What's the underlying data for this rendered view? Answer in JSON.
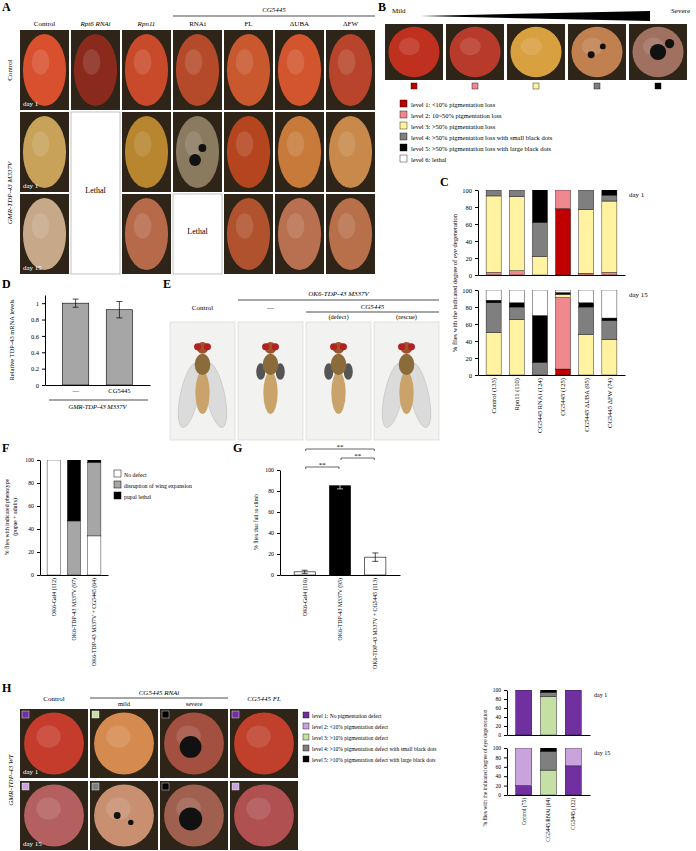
{
  "figure": {
    "panel_labels": [
      "A",
      "B",
      "C",
      "D",
      "E",
      "F",
      "G",
      "H"
    ],
    "A": {
      "column_group": "CG5445",
      "columns": [
        "Control",
        "Rpt6 RNAi",
        "Rpn11",
        "RNAi",
        "FL",
        "ΔUBA",
        "ΔFW"
      ],
      "rows": [
        "Control",
        "GMR-TDP-43 M337V"
      ],
      "day_labels": [
        "day 1",
        "day 1",
        "day 15"
      ],
      "lethal": [
        "Lethal",
        "Lethal"
      ]
    },
    "B": {
      "mild": "Mild",
      "severe": "Severe"
    },
    "E": {
      "control": "Control",
      "genotype": "OK6-TDP-43 M337V",
      "none": "—",
      "gene": "CG5445",
      "defect": "(defect)",
      "rescue": "(rescue)"
    },
    "H": {
      "genotype": "GMR-TDP-43 WT",
      "columns": [
        "Control",
        "CG5445 RNAi",
        "CG5445 FL"
      ],
      "subcolumns": [
        "mild",
        "severe"
      ],
      "day_labels": [
        "day 1",
        "day 15"
      ]
    }
  },
  "chart_data": [
    {
      "type": "bar",
      "stacked": true,
      "title": "day 1",
      "tick_labels": "y",
      "ylabel": "% flies with the indicated degree of eye degeneration",
      "categories": [
        null,
        null,
        null,
        null,
        null,
        null
      ],
      "ylim": [
        0,
        100
      ],
      "yticks": [
        0,
        20,
        40,
        60,
        80,
        100
      ],
      "series": [
        {
          "name": "level 1: <10% pigmentation loss",
          "color": "#c00000",
          "values": [
            0,
            0,
            0,
            78,
            0,
            0
          ]
        },
        {
          "name": "level 2: 10~50% pigmentation loss",
          "color": "#f08890",
          "values": [
            3,
            5,
            0,
            22,
            2,
            3
          ]
        },
        {
          "name": "level 3: >50% pigmentation loss",
          "color": "#fff2a0",
          "values": [
            90,
            87,
            22,
            0,
            75,
            84
          ]
        },
        {
          "name": "level 4: >50% pigmentation loss with small black dots",
          "color": "#7f7f7f",
          "values": [
            7,
            8,
            40,
            0,
            23,
            7
          ]
        },
        {
          "name": "level 5: >50% pigmentation loss with large black dots",
          "color": "#000000",
          "values": [
            0,
            0,
            38,
            0,
            0,
            6
          ]
        },
        {
          "name": "level 6: lethal",
          "color": "#ffffff",
          "values": [
            0,
            0,
            0,
            0,
            0,
            0
          ]
        }
      ]
    },
    {
      "type": "bar",
      "stacked": true,
      "title": "day 15",
      "categories": [
        "Control (133)",
        "Rpn11 (110)",
        "CG5445 RNAi (124)",
        "CG5445 (125)",
        "CG5445 ΔUBA (95)",
        "CG5445 ΔFW (74)"
      ],
      "ylim": [
        0,
        100
      ],
      "yticks": [
        0,
        20,
        40,
        60,
        80,
        100
      ],
      "series": [
        {
          "color": "#c00000",
          "values": [
            0,
            0,
            0,
            7,
            0,
            0
          ]
        },
        {
          "color": "#f08890",
          "values": [
            0,
            0,
            0,
            84,
            0,
            0
          ]
        },
        {
          "color": "#fff2a0",
          "values": [
            50,
            65,
            0,
            4,
            48,
            42
          ]
        },
        {
          "color": "#7f7f7f",
          "values": [
            35,
            15,
            15,
            0,
            32,
            22
          ]
        },
        {
          "color": "#000000",
          "values": [
            3,
            5,
            55,
            2,
            5,
            3
          ]
        },
        {
          "color": "#ffffff",
          "values": [
            12,
            15,
            30,
            3,
            15,
            33
          ]
        }
      ]
    },
    {
      "type": "bar",
      "ylabel": "Relative TDP-43 mRNA levels",
      "xlabel": "GMR-TDP-43 M337V",
      "categories": [
        "—",
        "CG5445"
      ],
      "values": [
        1,
        0.92
      ],
      "errors": [
        0.05,
        0.1
      ],
      "color": "#a6a6a6",
      "ylim": [
        0,
        1.1
      ],
      "yticks": [
        0,
        0.2,
        0.4,
        0.6,
        0.8,
        1
      ]
    },
    {
      "type": "bar",
      "stacked": true,
      "legend": "right",
      "ylabel": [
        "% flies with indicated phenotype",
        "(pupae + adults)"
      ],
      "categories": [
        "OK6-Gal4 (112)",
        "OK6-TDP-43 M337V (97)",
        "OK6-TDP-43 M337V + CG5445 (64)"
      ],
      "ylim": [
        0,
        100
      ],
      "yticks": [
        0,
        20,
        40,
        60,
        80,
        100
      ],
      "series": [
        {
          "name": "No defect",
          "color": "#ffffff",
          "values": [
            100,
            0,
            34
          ]
        },
        {
          "name": "disruption of wing expansion",
          "color": "#a6a6a6",
          "values": [
            0,
            47,
            64
          ]
        },
        {
          "name": "pupal lethal",
          "color": "#000000",
          "values": [
            0,
            53,
            2
          ]
        }
      ]
    },
    {
      "type": "bar",
      "ylabel": "% flies that fail to climb",
      "categories": [
        "OK6-Gal4 (110)",
        "OK6-TDP-43 M337V (95)",
        "OK6-TDP-43 M337V + CG5445 (113)"
      ],
      "values": [
        3,
        85,
        17
      ],
      "errors": [
        1.5,
        3,
        4
      ],
      "colors": [
        "#ffffff",
        "#000000",
        "#ffffff"
      ],
      "ylim": [
        0,
        100
      ],
      "yticks": [
        0,
        20,
        40,
        60,
        80,
        100
      ],
      "significance": [
        {
          "from": 0,
          "to": 1,
          "label": "**"
        },
        {
          "from": 1,
          "to": 2,
          "label": "**"
        },
        {
          "from": 0,
          "to": 2,
          "label": "**"
        }
      ]
    },
    {
      "type": "bar",
      "stacked": true,
      "title": "day 1",
      "tick_labels": "y",
      "ylabel": "% flies with the indicated degree of eye degeneration",
      "categories": [
        null,
        null,
        null
      ],
      "ylim": [
        0,
        100
      ],
      "yticks": [
        0,
        20,
        40,
        60,
        80,
        100
      ],
      "series": [
        {
          "name": "level 1: No pigmentation defect",
          "color": "#7030a0",
          "values": [
            100,
            0,
            100
          ]
        },
        {
          "name": "level 2: <10% pigmentation defect",
          "color": "#c9a3dc",
          "values": [
            0,
            0,
            0
          ]
        },
        {
          "name": "level 3: >10% pigmentation defect",
          "color": "#c5e0a5",
          "values": [
            0,
            85,
            0
          ]
        },
        {
          "name": "level 4: >10% pigmentation defect with small black dots",
          "color": "#7f7f7f",
          "values": [
            0,
            10,
            0
          ]
        },
        {
          "name": "level 5: >10% pigmentation defect with large black dots",
          "color": "#000000",
          "values": [
            0,
            5,
            0
          ]
        }
      ]
    },
    {
      "type": "bar",
      "stacked": true,
      "title": "day 15",
      "categories": [
        "Control (75)",
        "CG5445 RNAi (64)",
        "CG5445 (122)"
      ],
      "ylim": [
        0,
        100
      ],
      "yticks": [
        0,
        20,
        40,
        60,
        80,
        100
      ],
      "series": [
        {
          "color": "#7030a0",
          "values": [
            20,
            0,
            62
          ]
        },
        {
          "color": "#c9a3dc",
          "values": [
            80,
            0,
            38
          ]
        },
        {
          "color": "#c5e0a5",
          "values": [
            0,
            53,
            0
          ]
        },
        {
          "color": "#7f7f7f",
          "values": [
            0,
            40,
            0
          ]
        },
        {
          "color": "#000000",
          "values": [
            0,
            7,
            0
          ]
        }
      ]
    }
  ]
}
